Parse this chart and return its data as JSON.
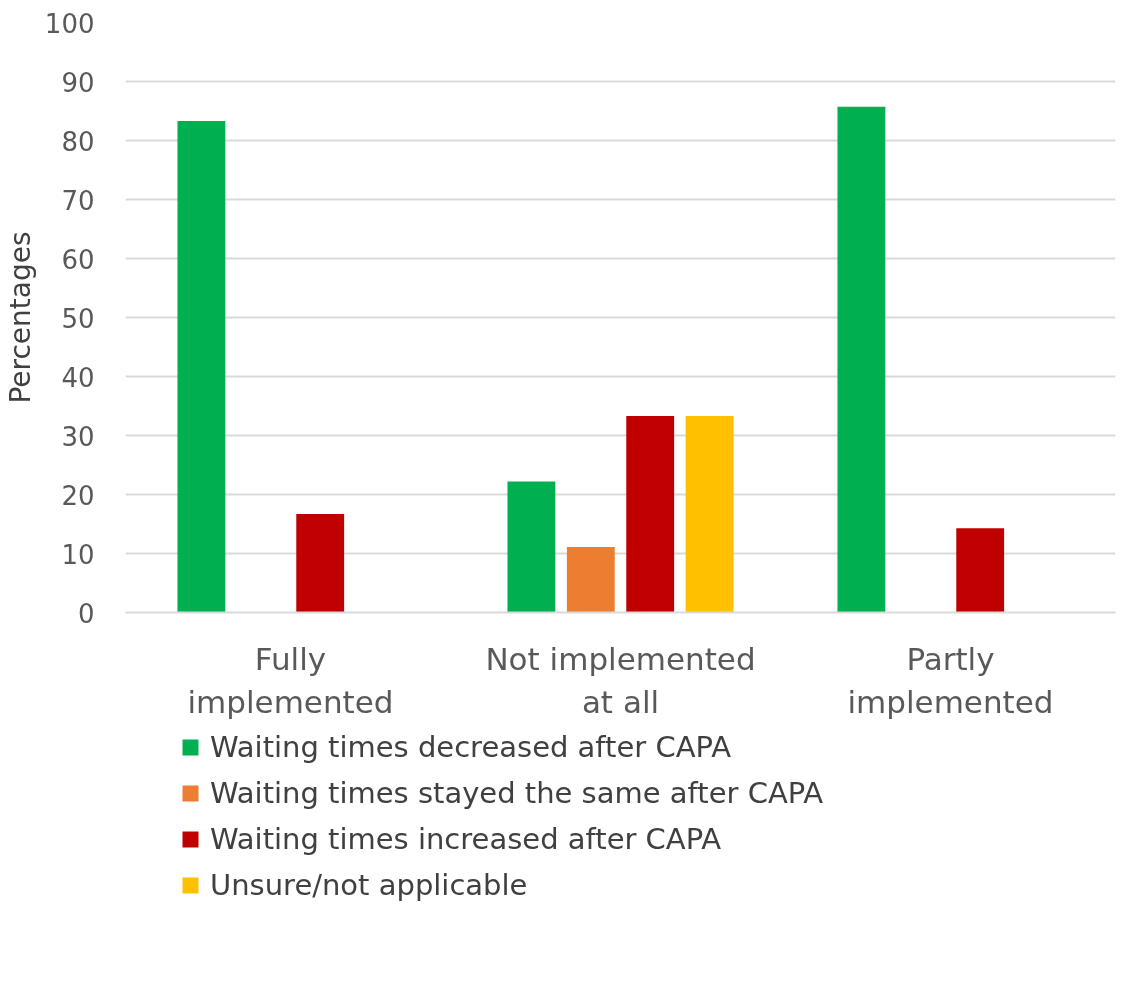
{
  "chart_data": {
    "type": "bar",
    "ylabel": "Percentages",
    "categories": [
      "Fully implemented",
      "Not implemented at all",
      "Partly implemented"
    ],
    "series": [
      {
        "name": "Waiting times decreased after CAPA",
        "color": "#00b050",
        "values": [
          83.3,
          22.2,
          85.7
        ]
      },
      {
        "name": "Waiting times stayed the same after CAPA",
        "color": "#ed7d31",
        "values": [
          0,
          11.1,
          0
        ]
      },
      {
        "name": "Waiting times increased after CAPA",
        "color": "#c00000",
        "values": [
          16.7,
          33.3,
          14.3
        ]
      },
      {
        "name": "Unsure/not applicable",
        "color": "#ffc000",
        "values": [
          0,
          33.3,
          0
        ]
      }
    ],
    "ylim": [
      0,
      100
    ],
    "yticks": [
      0,
      10,
      20,
      30,
      40,
      50,
      60,
      70,
      80,
      90,
      100
    ],
    "grid": "y",
    "legend": "bottom"
  }
}
